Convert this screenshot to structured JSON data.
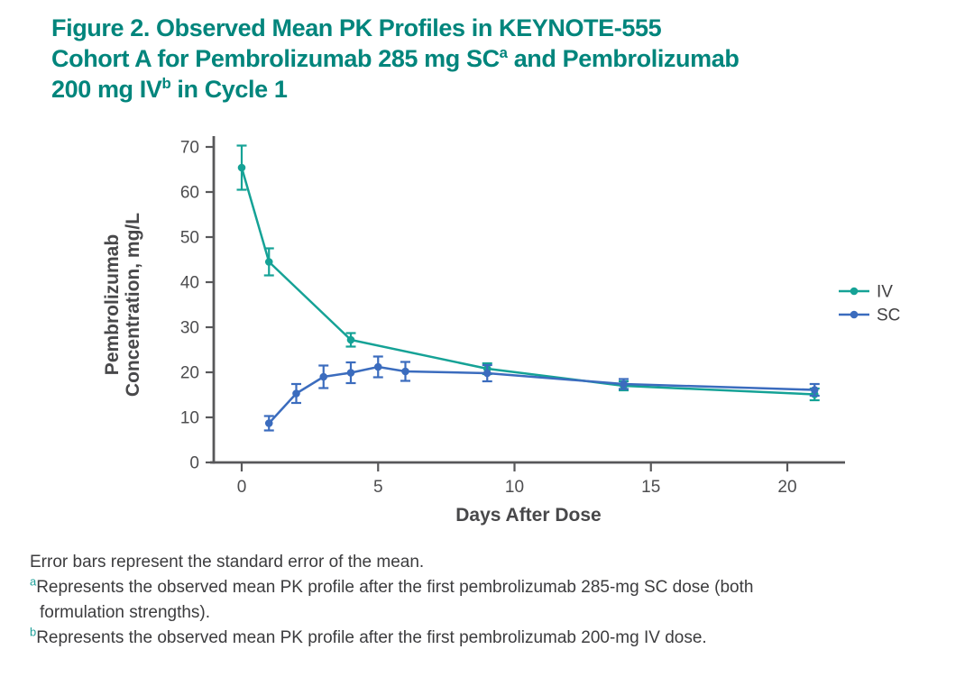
{
  "title": {
    "color": "#00857C",
    "lines": [
      {
        "segs": [
          {
            "t": "Figure 2. Observed Mean PK Profiles in KEYNOTE-555"
          }
        ]
      },
      {
        "segs": [
          {
            "t": "Cohort A for Pembrolizumab 285 mg SC"
          },
          {
            "t": "a",
            "sup": true
          },
          {
            "t": " and Pembrolizumab"
          }
        ]
      },
      {
        "segs": [
          {
            "t": "200 mg IV"
          },
          {
            "t": "b",
            "sup": true
          },
          {
            "t": " in Cycle 1"
          }
        ]
      }
    ]
  },
  "colors": {
    "axis": "#58585A",
    "tick_text": "#4D4D4F",
    "axis_title_text": "#48484A",
    "legend_text": "#414042",
    "footnote_text": "#3C3C3E",
    "footnote_sup": "#1FA09A",
    "iv_teal": "#15A296",
    "sc_blue": "#3B6CBE"
  },
  "chart_data": {
    "type": "line",
    "title": "Figure 2. Observed Mean PK Profiles in KEYNOTE-555 Cohort A for Pembrolizumab 285 mg SC and Pembrolizumab 200 mg IV in Cycle 1",
    "xlabel": "Days After Dose",
    "ylabel_lines": [
      "Pembrolizumab",
      "Concentration, mg/L"
    ],
    "xlim": [
      0,
      22
    ],
    "ylim": [
      0,
      70
    ],
    "xticks": [
      0,
      5,
      10,
      15,
      20
    ],
    "yticks": [
      0,
      10,
      20,
      30,
      40,
      50,
      60,
      70
    ],
    "grid": false,
    "legend_position": "right-middle",
    "error_bars": "standard error of the mean",
    "series": [
      {
        "name": "IV",
        "color": "#15A296",
        "x": [
          0,
          1,
          4,
          9,
          14,
          21
        ],
        "y": [
          65.4,
          44.5,
          27.2,
          20.8,
          17.0,
          15.1
        ],
        "se": [
          4.9,
          3.0,
          1.5,
          1.2,
          1.0,
          1.3
        ]
      },
      {
        "name": "SC",
        "color": "#3B6CBE",
        "x": [
          1,
          2,
          3,
          4,
          5,
          6,
          9,
          14,
          21
        ],
        "y": [
          8.7,
          15.3,
          19.0,
          19.9,
          21.2,
          20.2,
          19.8,
          17.4,
          16.1
        ],
        "se": [
          1.6,
          2.1,
          2.5,
          2.3,
          2.3,
          2.1,
          1.8,
          1.1,
          1.3
        ]
      }
    ]
  },
  "footnotes": {
    "lines": [
      {
        "segs": [
          {
            "t": "Error bars represent the standard error of the mean."
          }
        ]
      },
      {
        "segs": [
          {
            "t": "a",
            "sup": true
          },
          {
            "t": "Represents the observed mean PK profile after the first pembrolizumab 285-mg SC dose (both"
          }
        ]
      },
      {
        "indent": true,
        "segs": [
          {
            "t": "formulation strengths)."
          }
        ]
      },
      {
        "segs": [
          {
            "t": "b",
            "sup": true
          },
          {
            "t": "Represents the observed mean PK profile after the first pembrolizumab 200-mg IV dose."
          }
        ]
      }
    ]
  }
}
